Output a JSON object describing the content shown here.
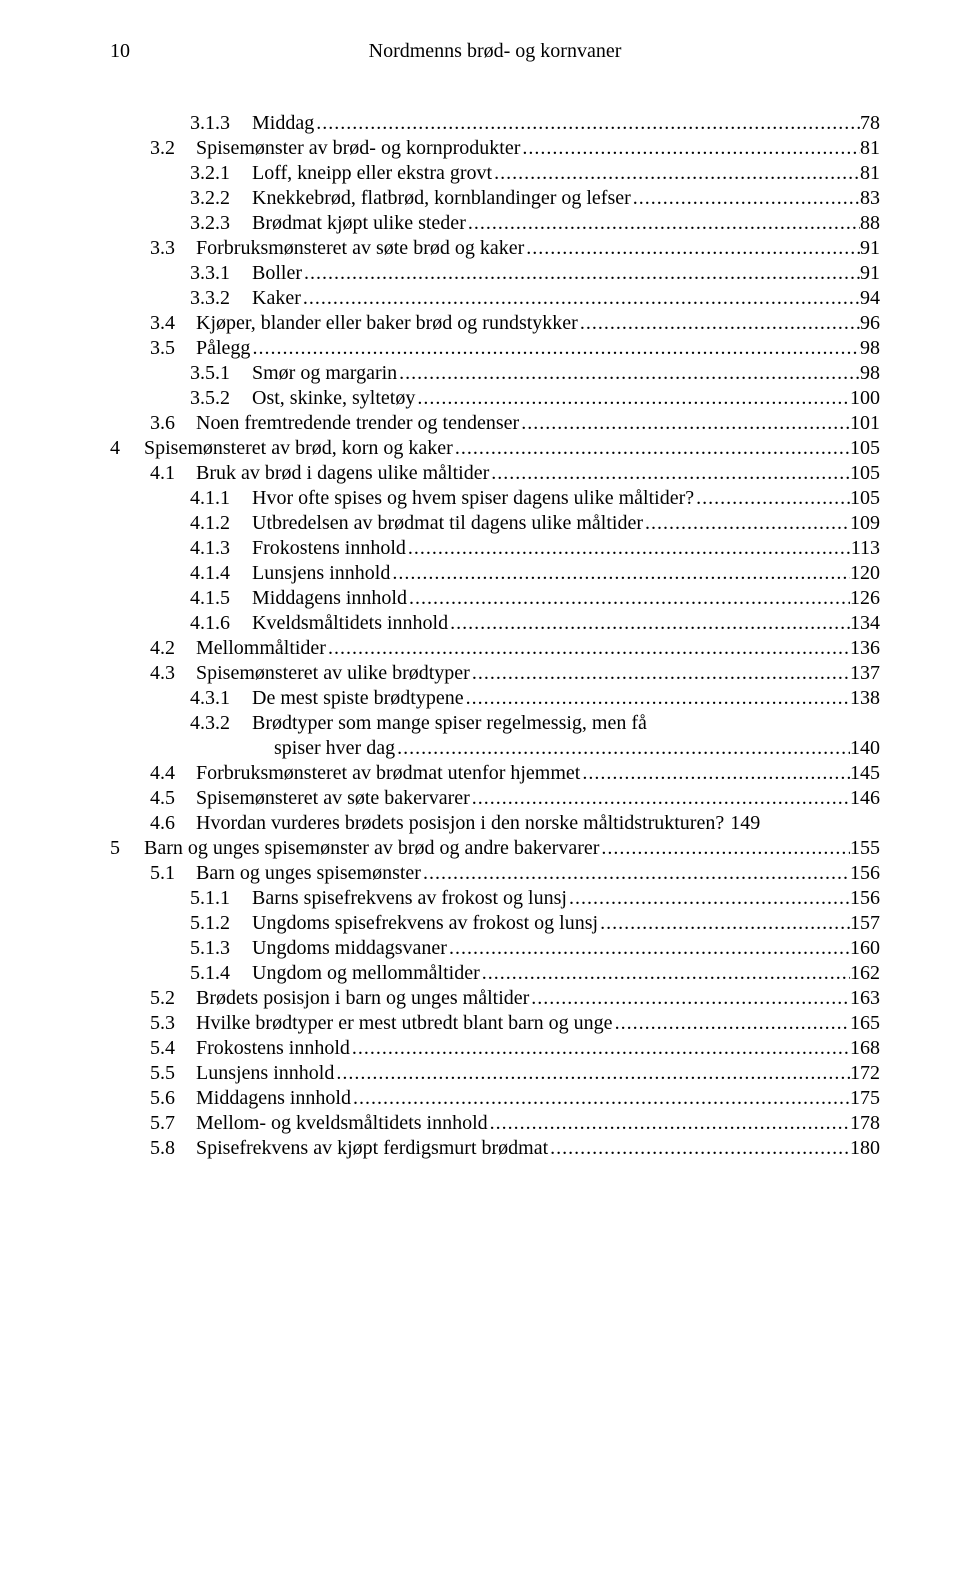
{
  "header": {
    "page_number": "10",
    "running_title": "Nordmenns brød- og kornvaner"
  },
  "leader": "............................................................................................................................................................................................",
  "toc": [
    {
      "indent": 2,
      "num": "3.1.3",
      "label": "Middag",
      "page": "78"
    },
    {
      "indent": 1,
      "num": "3.2",
      "label": "Spisemønster av brød- og kornprodukter",
      "page": "81"
    },
    {
      "indent": 2,
      "num": "3.2.1",
      "label": "Loff, kneipp eller ekstra grovt",
      "page": "81"
    },
    {
      "indent": 2,
      "num": "3.2.2",
      "label": "Knekkebrød, flatbrød, kornblandinger og lefser",
      "page": "83"
    },
    {
      "indent": 2,
      "num": "3.2.3",
      "label": "Brødmat kjøpt ulike steder",
      "page": "88"
    },
    {
      "indent": 1,
      "num": "3.3",
      "label": "Forbruksmønsteret av søte brød og kaker",
      "page": "91"
    },
    {
      "indent": 2,
      "num": "3.3.1",
      "label": "Boller",
      "page": "91"
    },
    {
      "indent": 2,
      "num": "3.3.2",
      "label": "Kaker",
      "page": "94"
    },
    {
      "indent": 1,
      "num": "3.4",
      "label": "Kjøper, blander eller baker brød og rundstykker",
      "page": "96"
    },
    {
      "indent": 1,
      "num": "3.5",
      "label": "Pålegg",
      "page": "98"
    },
    {
      "indent": 2,
      "num": "3.5.1",
      "label": "Smør og margarin",
      "page": "98"
    },
    {
      "indent": 2,
      "num": "3.5.2",
      "label": "Ost, skinke, syltetøy",
      "page": "100"
    },
    {
      "indent": 1,
      "num": "3.6",
      "label": "Noen fremtredende trender og tendenser",
      "page": "101"
    },
    {
      "indent": 0,
      "num": "4",
      "label": "Spisemønsteret av brød, korn og kaker",
      "page": "105"
    },
    {
      "indent": 1,
      "num": "4.1",
      "label": "Bruk av brød i dagens ulike måltider",
      "page": "105"
    },
    {
      "indent": 2,
      "num": "4.1.1",
      "label": "Hvor ofte spises og hvem spiser dagens ulike måltider?",
      "page": "105"
    },
    {
      "indent": 2,
      "num": "4.1.2",
      "label": "Utbredelsen av brødmat til dagens ulike måltider",
      "page": "109"
    },
    {
      "indent": 2,
      "num": "4.1.3",
      "label": "Frokostens innhold",
      "page": "113"
    },
    {
      "indent": 2,
      "num": "4.1.4",
      "label": "Lunsjens innhold",
      "page": "120"
    },
    {
      "indent": 2,
      "num": "4.1.5",
      "label": "Middagens innhold",
      "page": "126"
    },
    {
      "indent": 2,
      "num": "4.1.6",
      "label": "Kveldsmåltidets innhold",
      "page": "134"
    },
    {
      "indent": 1,
      "num": "4.2",
      "label": "Mellommåltider",
      "page": "136"
    },
    {
      "indent": 1,
      "num": "4.3",
      "label": "Spisemønsteret av ulike brødtyper",
      "page": "137"
    },
    {
      "indent": 2,
      "num": "4.3.1",
      "label": "De mest spiste brødtypene",
      "page": "138"
    },
    {
      "indent": 2,
      "num": "4.3.2",
      "label": "Brødtyper som mange spiser regelmessig, men få",
      "page": null,
      "continuation": "spiser hver dag",
      "cont_page": "140"
    },
    {
      "indent": 1,
      "num": "4.4",
      "label": "Forbruksmønsteret av brødmat utenfor hjemmet",
      "page": "145"
    },
    {
      "indent": 1,
      "num": "4.5",
      "label": "Spisemønsteret av søte bakervarer",
      "page": "146"
    },
    {
      "indent": 1,
      "num": "4.6",
      "label": "Hvordan vurderes brødets posisjon i den norske måltidstrukturen?",
      "page": "149",
      "no_leader": true
    },
    {
      "indent": 0,
      "num": "5",
      "label": "Barn og unges spisemønster av brød og andre bakervarer",
      "page": "155"
    },
    {
      "indent": 1,
      "num": "5.1",
      "label": "Barn og unges spisemønster",
      "page": "156"
    },
    {
      "indent": 2,
      "num": "5.1.1",
      "label": "Barns spisefrekvens av frokost og lunsj",
      "page": "156"
    },
    {
      "indent": 2,
      "num": "5.1.2",
      "label": "Ungdoms spisefrekvens av frokost og lunsj",
      "page": "157"
    },
    {
      "indent": 2,
      "num": "5.1.3",
      "label": "Ungdoms middagsvaner",
      "page": "160"
    },
    {
      "indent": 2,
      "num": "5.1.4",
      "label": "Ungdom og mellommåltider",
      "page": "162"
    },
    {
      "indent": 1,
      "num": "5.2",
      "label": "Brødets posisjon i barn og unges måltider",
      "page": "163"
    },
    {
      "indent": 1,
      "num": "5.3",
      "label": "Hvilke brødtyper er mest utbredt blant barn og unge",
      "page": "165"
    },
    {
      "indent": 1,
      "num": "5.4",
      "label": "Frokostens innhold",
      "page": "168"
    },
    {
      "indent": 1,
      "num": "5.5",
      "label": "Lunsjens innhold",
      "page": "172"
    },
    {
      "indent": 1,
      "num": "5.6",
      "label": "Middagens innhold",
      "page": "175"
    },
    {
      "indent": 1,
      "num": "5.7",
      "label": "Mellom- og kveldsmåltidets innhold",
      "page": "178"
    },
    {
      "indent": 1,
      "num": "5.8",
      "label": "Spisefrekvens av kjøpt ferdigsmurt brødmat",
      "page": "180"
    }
  ],
  "num_pad": {
    "0": 30,
    "1": 42,
    "2": 58
  }
}
